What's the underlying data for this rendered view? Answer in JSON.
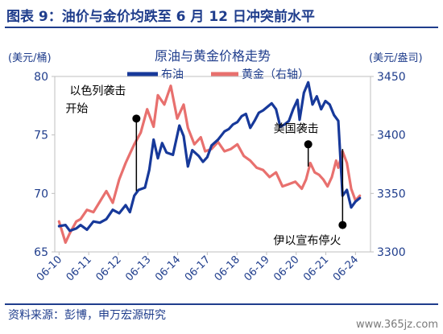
{
  "figure": {
    "title": "图表 9：油价与金价均跌至 6 月 12 日冲突前水平",
    "source": "资料来源：彭博，申万宏源研究",
    "watermark": "www.365jz.com"
  },
  "colors": {
    "brand": "#1f3d8c",
    "oil": "#17399a",
    "gold": "#e8706e",
    "annotation": "#000000"
  },
  "chart_data": {
    "type": "line",
    "title": "原油与黄金价格走势",
    "left_axis_label": "(美元/桶)",
    "right_axis_label": "(美元/盎司)",
    "ylim_left": [
      65,
      80
    ],
    "ylim_right": [
      3300,
      3450
    ],
    "yticks_left": [
      "80",
      "75",
      "70",
      "65"
    ],
    "yticks_right": [
      "3450",
      "3400",
      "3350",
      "3300"
    ],
    "xlim": [
      -0.2,
      14.5
    ],
    "xticks": [
      "06-10",
      "06-11",
      "06-12",
      "06-13",
      "06-14",
      "06-17",
      "06-18",
      "06-19",
      "06-20",
      "06-21",
      "06-24"
    ],
    "legend_position": "top",
    "series": [
      {
        "name": "布油",
        "axis": "left",
        "points": [
          [
            0,
            67.2
          ],
          [
            0.3,
            67.3
          ],
          [
            0.5,
            66.8
          ],
          [
            0.8,
            67.0
          ],
          [
            1.0,
            67.3
          ],
          [
            1.3,
            66.9
          ],
          [
            1.6,
            67.6
          ],
          [
            1.9,
            67.5
          ],
          [
            2.2,
            67.8
          ],
          [
            2.5,
            68.6
          ],
          [
            2.8,
            68.3
          ],
          [
            3.1,
            69.0
          ],
          [
            3.3,
            68.4
          ],
          [
            3.5,
            69.8
          ],
          [
            3.7,
            70.3
          ],
          [
            4.0,
            70.5
          ],
          [
            4.2,
            72.0
          ],
          [
            4.4,
            74.6
          ],
          [
            4.6,
            73.0
          ],
          [
            4.8,
            74.3
          ],
          [
            5.0,
            73.5
          ],
          [
            5.3,
            73.3
          ],
          [
            5.6,
            75.8
          ],
          [
            5.8,
            74.9
          ],
          [
            6.0,
            72.3
          ],
          [
            6.2,
            73.7
          ],
          [
            6.5,
            73.2
          ],
          [
            6.7,
            72.7
          ],
          [
            6.9,
            73.1
          ],
          [
            7.1,
            74.1
          ],
          [
            7.4,
            74.6
          ],
          [
            7.7,
            75.3
          ],
          [
            7.9,
            75.5
          ],
          [
            8.1,
            75.9
          ],
          [
            8.3,
            76.1
          ],
          [
            8.5,
            76.6
          ],
          [
            8.7,
            76.8
          ],
          [
            8.9,
            75.6
          ],
          [
            9.1,
            76.2
          ],
          [
            9.3,
            76.9
          ],
          [
            9.5,
            77.1
          ],
          [
            9.7,
            77.4
          ],
          [
            9.9,
            77.7
          ],
          [
            10.1,
            77.2
          ],
          [
            10.3,
            75.7
          ],
          [
            10.5,
            75.9
          ],
          [
            10.7,
            76.2
          ],
          [
            10.9,
            77.2
          ],
          [
            11.1,
            78.0
          ],
          [
            11.2,
            76.3
          ],
          [
            11.4,
            78.6
          ],
          [
            11.6,
            79.5
          ],
          [
            11.8,
            77.6
          ],
          [
            12.0,
            78.3
          ],
          [
            12.2,
            77.2
          ],
          [
            12.4,
            77.9
          ],
          [
            12.6,
            77.6
          ],
          [
            12.8,
            76.7
          ],
          [
            13.0,
            76.2
          ],
          [
            13.2,
            69.8
          ],
          [
            13.4,
            70.3
          ],
          [
            13.6,
            68.8
          ],
          [
            13.8,
            69.3
          ],
          [
            14.0,
            69.6
          ]
        ]
      },
      {
        "name": "黄金（右轴）",
        "axis": "right",
        "points": [
          [
            0,
            3326
          ],
          [
            0.3,
            3308
          ],
          [
            0.5,
            3316
          ],
          [
            0.8,
            3326
          ],
          [
            1.0,
            3328
          ],
          [
            1.3,
            3336
          ],
          [
            1.6,
            3334
          ],
          [
            1.9,
            3343
          ],
          [
            2.2,
            3352
          ],
          [
            2.5,
            3342
          ],
          [
            2.8,
            3362
          ],
          [
            3.1,
            3376
          ],
          [
            3.3,
            3384
          ],
          [
            3.5,
            3392
          ],
          [
            3.8,
            3402
          ],
          [
            4.1,
            3422
          ],
          [
            4.4,
            3407
          ],
          [
            4.6,
            3434
          ],
          [
            4.9,
            3426
          ],
          [
            5.2,
            3442
          ],
          [
            5.5,
            3414
          ],
          [
            5.8,
            3426
          ],
          [
            6.0,
            3406
          ],
          [
            6.3,
            3392
          ],
          [
            6.6,
            3398
          ],
          [
            6.8,
            3386
          ],
          [
            7.1,
            3388
          ],
          [
            7.4,
            3394
          ],
          [
            7.7,
            3386
          ],
          [
            8.0,
            3388
          ],
          [
            8.3,
            3392
          ],
          [
            8.6,
            3382
          ],
          [
            8.9,
            3378
          ],
          [
            9.2,
            3372
          ],
          [
            9.5,
            3370
          ],
          [
            9.8,
            3364
          ],
          [
            10.1,
            3368
          ],
          [
            10.4,
            3356
          ],
          [
            10.7,
            3358
          ],
          [
            11.0,
            3360
          ],
          [
            11.3,
            3354
          ],
          [
            11.5,
            3362
          ],
          [
            11.7,
            3376
          ],
          [
            11.9,
            3368
          ],
          [
            12.1,
            3366
          ],
          [
            12.3,
            3362
          ],
          [
            12.5,
            3356
          ],
          [
            12.7,
            3364
          ],
          [
            12.9,
            3378
          ],
          [
            13.0,
            3372
          ],
          [
            13.2,
            3386
          ],
          [
            13.4,
            3376
          ],
          [
            13.6,
            3354
          ],
          [
            13.8,
            3344
          ],
          [
            14.0,
            3348
          ]
        ]
      }
    ],
    "annotations": [
      {
        "text": "以色列袭击开始",
        "lines": [
          "以色列袭击",
          "开始"
        ],
        "x": 3.6,
        "y_left": 76.4,
        "y_left_end": 70.2
      },
      {
        "text": "美国袭击",
        "lines": [
          "美国袭击"
        ],
        "x": 11.6,
        "y_left": 74.2,
        "y_left_end": 72.3
      },
      {
        "text": "伊以宣布停火",
        "lines": [
          "伊以宣布停火"
        ],
        "x": 13.2,
        "y_left": 67.3,
        "y_left_end": 73.8
      }
    ]
  }
}
